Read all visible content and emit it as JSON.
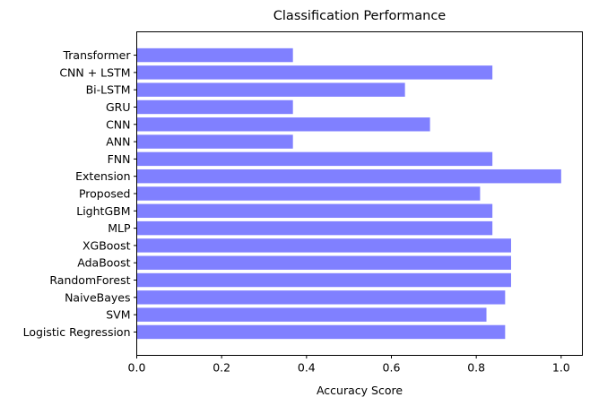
{
  "chart_data": {
    "type": "bar",
    "orientation": "horizontal",
    "title": "Classification Performance",
    "xlabel": "Accuracy Score",
    "ylabel": "",
    "xlim": [
      0,
      1.05
    ],
    "xticks": [
      0.0,
      0.2,
      0.4,
      0.6,
      0.8,
      1.0
    ],
    "xtick_labels": [
      "0.0",
      "0.2",
      "0.4",
      "0.6",
      "0.8",
      "1.0"
    ],
    "categories": [
      "Logistic Regression",
      "SVM",
      "NaiveBayes",
      "RandomForest",
      "AdaBoost",
      "XGBoost",
      "MLP",
      "LightGBM",
      "Proposed",
      "Extension",
      "FNN",
      "ANN",
      "CNN",
      "GRU",
      "Bi-LSTM",
      "CNN + LSTM",
      "Transformer"
    ],
    "values": [
      0.868,
      0.824,
      0.868,
      0.882,
      0.882,
      0.882,
      0.838,
      0.838,
      0.809,
      1.0,
      0.838,
      0.368,
      0.691,
      0.368,
      0.632,
      0.838,
      0.368
    ],
    "bar_color": "#8080ff",
    "grid": false
  }
}
